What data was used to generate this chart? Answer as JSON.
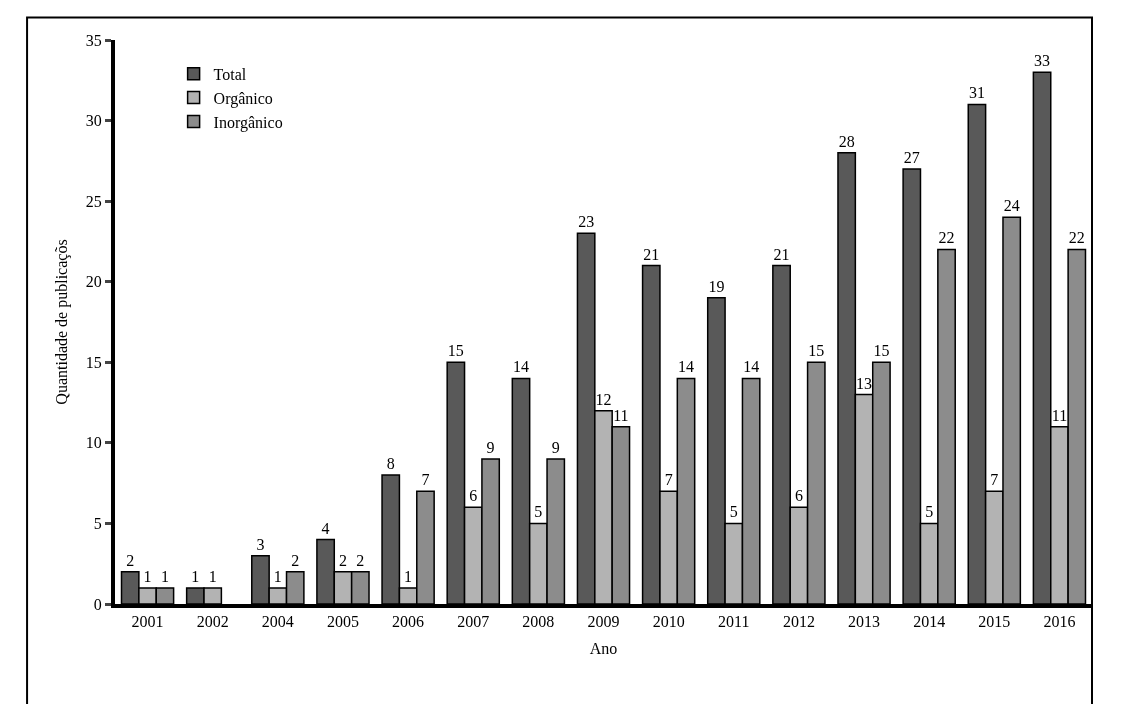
{
  "chart_data": {
    "type": "bar",
    "xlabel": "Ano",
    "ylabel": "Quantidade de publicaçõs",
    "categories": [
      "2001",
      "2002",
      "2004",
      "2005",
      "2006",
      "2007",
      "2008",
      "2009",
      "2010",
      "2011",
      "2012",
      "2013",
      "2014",
      "2015",
      "2016"
    ],
    "series": [
      {
        "name": "Total",
        "color": "#595959",
        "values": [
          2,
          1,
          3,
          4,
          8,
          15,
          14,
          23,
          21,
          19,
          21,
          28,
          27,
          31,
          33
        ]
      },
      {
        "name": "Orgânico",
        "color": "#b3b3b3",
        "values": [
          1,
          1,
          1,
          2,
          1,
          6,
          5,
          12,
          7,
          5,
          6,
          13,
          5,
          7,
          11
        ]
      },
      {
        "name": "Inorgânico",
        "color": "#8c8c8c",
        "values": [
          1,
          null,
          2,
          2,
          7,
          9,
          9,
          11,
          14,
          14,
          15,
          15,
          22,
          24,
          22
        ]
      }
    ],
    "ylim": [
      0,
      35
    ],
    "yticks": [
      0,
      5,
      10,
      15,
      20,
      25,
      30,
      35
    ],
    "data_labels": true,
    "grid": false,
    "legend": "top left"
  }
}
